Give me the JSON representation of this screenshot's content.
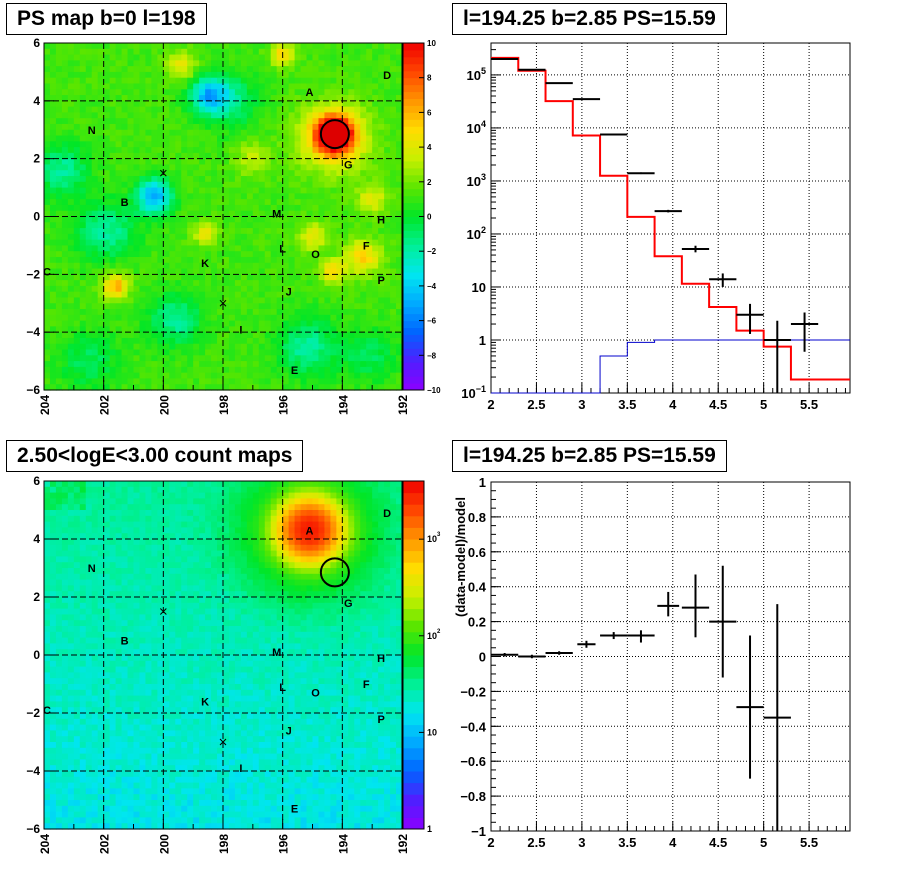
{
  "titles": {
    "ps_map": "PS map b=0 l=198",
    "spectrum": "l=194.25 b=2.85 PS=15.59",
    "count_map": "2.50<logE<3.00 count maps",
    "residual": "l=194.25 b=2.85 PS=15.59"
  },
  "colors": {
    "data": "#000000",
    "model": "#ff0000",
    "ps_component": "#0000cc",
    "grid": "#000000",
    "selected_source_fill": "#dd0000"
  },
  "chart_data": [
    {
      "type": "heatmap",
      "title": "PS map b=0 l=198",
      "x_ticks": [
        "204",
        "202",
        "200",
        "198",
        "196",
        "194",
        "192"
      ],
      "y_ticks": [
        "6",
        "4",
        "2",
        "0",
        "-2",
        "-4",
        "-6"
      ],
      "xlim": [
        204,
        192
      ],
      "ylim": [
        -6,
        6
      ],
      "colorbar": {
        "min": -10,
        "max": 10,
        "ticks": [
          "10",
          "8",
          "6",
          "4",
          "2",
          "0",
          "−2",
          "−4",
          "−6",
          "−8",
          "−10"
        ]
      },
      "grid": true,
      "sources": [
        {
          "label": "A",
          "l": 195.1,
          "b": 4.3
        },
        {
          "label": "B",
          "l": 201.3,
          "b": 0.5
        },
        {
          "label": "C",
          "l": 203.9,
          "b": -1.9
        },
        {
          "label": "D",
          "l": 192.5,
          "b": 4.9
        },
        {
          "label": "E",
          "l": 195.6,
          "b": -5.3
        },
        {
          "label": "F",
          "l": 193.2,
          "b": -1.0
        },
        {
          "label": "G",
          "l": 193.8,
          "b": 1.8
        },
        {
          "label": "H",
          "l": 192.7,
          "b": -0.1
        },
        {
          "label": "I",
          "l": 197.4,
          "b": -3.9
        },
        {
          "label": "J",
          "l": 195.8,
          "b": -2.6
        },
        {
          "label": "K",
          "l": 198.6,
          "b": -1.6
        },
        {
          "label": "L",
          "l": 196.0,
          "b": -1.1
        },
        {
          "label": "M",
          "l": 196.2,
          "b": 0.1
        },
        {
          "label": "N",
          "l": 202.4,
          "b": 3.0
        },
        {
          "label": "O",
          "l": 194.9,
          "b": -1.3
        },
        {
          "label": "P",
          "l": 192.7,
          "b": -2.2
        }
      ],
      "crosses": [
        {
          "l": 200.0,
          "b": 1.5
        },
        {
          "l": 198.0,
          "b": -3.0
        }
      ],
      "selected": {
        "l": 194.25,
        "b": 2.85,
        "ps": 15.59
      },
      "blobs": [
        {
          "l": 194.25,
          "b": 2.85,
          "value": 10,
          "radius": 0.6
        },
        {
          "l": 194.3,
          "b": 2.7,
          "value": 5,
          "radius": 1.1
        },
        {
          "l": 198.5,
          "b": 4.2,
          "value": -5,
          "radius": 0.6
        },
        {
          "l": 200.3,
          "b": 0.7,
          "value": -6,
          "radius": 0.6
        },
        {
          "l": 197.8,
          "b": 4.0,
          "value": -3,
          "radius": 0.9
        },
        {
          "l": 201.6,
          "b": -2.4,
          "value": 5,
          "radius": 0.45
        },
        {
          "l": 193.3,
          "b": -1.4,
          "value": 4,
          "radius": 0.6
        },
        {
          "l": 193.0,
          "b": 0.6,
          "value": 3,
          "radius": 0.5
        },
        {
          "l": 194.3,
          "b": -1.9,
          "value": 4,
          "radius": 0.4
        },
        {
          "l": 198.6,
          "b": -0.6,
          "value": 3,
          "radius": 0.4
        },
        {
          "l": 195.2,
          "b": -4.5,
          "value": -3,
          "radius": 1.0
        },
        {
          "l": 199.6,
          "b": -3.6,
          "value": -3,
          "radius": 0.9
        },
        {
          "l": 195.0,
          "b": -0.7,
          "value": 3,
          "radius": 0.5
        },
        {
          "l": 201.9,
          "b": -0.5,
          "value": -3,
          "radius": 1.0
        },
        {
          "l": 203.4,
          "b": 1.6,
          "value": -3,
          "radius": 0.9
        },
        {
          "l": 193.1,
          "b": -4.8,
          "value": -2,
          "radius": 0.9
        },
        {
          "l": 199.4,
          "b": 5.2,
          "value": 3,
          "radius": 0.5
        },
        {
          "l": 196.0,
          "b": 5.6,
          "value": 4,
          "radius": 0.4
        },
        {
          "l": 202.5,
          "b": -5.0,
          "value": -2,
          "radius": 1.0
        },
        {
          "l": 197.0,
          "b": 2.0,
          "value": 2,
          "radius": 0.6
        }
      ]
    },
    {
      "type": "line",
      "title": "l=194.25 b=2.85 PS=15.59",
      "xlim": [
        2,
        5.95
      ],
      "ylim": [
        0.1,
        400000
      ],
      "yscale": "log",
      "grid": true,
      "x_ticks": [
        "2",
        "2.5",
        "3",
        "3.5",
        "4",
        "4.5",
        "5",
        "5.5"
      ],
      "y_ticks": [
        "10^-1",
        "1",
        "10",
        "10^2",
        "10^3",
        "10^4",
        "10^5"
      ],
      "series": [
        {
          "style": "points",
          "points": [
            {
              "x": 2.15,
              "y": 200000,
              "xerr": 0.15,
              "ylo": 199000,
              "yhi": 201000
            },
            {
              "x": 2.45,
              "y": 125000,
              "xerr": 0.15,
              "ylo": 124000,
              "yhi": 126000
            },
            {
              "x": 2.75,
              "y": 70000,
              "xerr": 0.15,
              "ylo": 69000,
              "yhi": 71000
            },
            {
              "x": 3.05,
              "y": 35000,
              "xerr": 0.15,
              "ylo": 34500,
              "yhi": 35500
            },
            {
              "x": 3.35,
              "y": 7500,
              "xerr": 0.15,
              "ylo": 7300,
              "yhi": 7700
            },
            {
              "x": 3.65,
              "y": 1400,
              "xerr": 0.15,
              "ylo": 1350,
              "yhi": 1450
            },
            {
              "x": 3.95,
              "y": 270,
              "xerr": 0.15,
              "ylo": 255,
              "yhi": 285
            },
            {
              "x": 4.25,
              "y": 52,
              "xerr": 0.15,
              "ylo": 45,
              "yhi": 60
            },
            {
              "x": 4.55,
              "y": 14,
              "xerr": 0.15,
              "ylo": 10,
              "yhi": 18
            },
            {
              "x": 4.85,
              "y": 3,
              "xerr": 0.15,
              "ylo": 1.3,
              "yhi": 4.8
            },
            {
              "x": 5.15,
              "y": 1,
              "xerr": 0.15,
              "ylo": 0.1,
              "yhi": 2.3
            },
            {
              "x": 5.45,
              "y": 2,
              "xerr": 0.15,
              "ylo": 0.6,
              "yhi": 3.3
            }
          ]
        },
        {
          "style": "step",
          "edges": [
            2,
            2.3,
            2.6,
            2.9,
            3.2,
            3.5,
            3.8,
            4.1,
            4.4,
            4.7,
            5.0,
            5.3,
            5.6,
            5.95
          ],
          "values": [
            210000,
            120000,
            32000,
            7200,
            1250,
            210,
            38,
            11.5,
            4.2,
            1.5,
            0.75,
            0.18,
            0.18
          ]
        },
        {
          "style": "step",
          "edges": [
            2,
            2.3,
            2.6,
            2.9,
            3.2,
            3.5,
            3.8,
            4.1,
            4.4,
            4.7,
            5.0,
            5.3,
            5.6,
            5.95
          ],
          "values": [
            0.1,
            0.1,
            0.1,
            0.1,
            0.5,
            0.9,
            1.0,
            1.0,
            1.0,
            1.0,
            1.0,
            1.0,
            1.0
          ]
        }
      ]
    },
    {
      "type": "heatmap",
      "title": "2.50<logE<3.00 count maps",
      "x_ticks": [
        "204",
        "202",
        "200",
        "198",
        "196",
        "194",
        "192"
      ],
      "y_ticks": [
        "6",
        "4",
        "2",
        "0",
        "-2",
        "-4",
        "-6"
      ],
      "xlim": [
        204,
        192
      ],
      "ylim": [
        -6,
        6
      ],
      "colorbar": {
        "scale": "log",
        "min": 1,
        "max": 4000,
        "ticks": [
          "10^3",
          "10^2",
          "10",
          "1"
        ]
      },
      "grid": true,
      "selected": {
        "l": 194.25,
        "b": 2.85
      },
      "bright_source": {
        "l": 195.1,
        "b": 4.3,
        "peak": 3000
      }
    },
    {
      "type": "scatter",
      "title": "l=194.25 b=2.85 PS=15.59",
      "ylabel": "(data-model)/model",
      "xlim": [
        2,
        5.95
      ],
      "ylim": [
        -1,
        1
      ],
      "grid": true,
      "x_ticks": [
        "2",
        "2.5",
        "3",
        "3.5",
        "4",
        "4.5",
        "5",
        "5.5"
      ],
      "y_ticks": [
        "1",
        "0.8",
        "0.6",
        "0.4",
        "0.2",
        "0",
        "-0.2",
        "-0.4",
        "-0.6",
        "-0.8",
        "-1"
      ],
      "points": [
        {
          "x": 2.15,
          "y": 0.01,
          "xerr": 0.15,
          "ylo": 0.0,
          "yhi": 0.02
        },
        {
          "x": 2.45,
          "y": 0.0,
          "xerr": 0.15,
          "ylo": -0.01,
          "yhi": 0.01
        },
        {
          "x": 2.75,
          "y": 0.02,
          "xerr": 0.15,
          "ylo": 0.01,
          "yhi": 0.03
        },
        {
          "x": 3.05,
          "y": 0.07,
          "xerr": 0.1,
          "ylo": 0.05,
          "yhi": 0.09
        },
        {
          "x": 3.35,
          "y": 0.12,
          "xerr": 0.15,
          "ylo": 0.1,
          "yhi": 0.14
        },
        {
          "x": 3.65,
          "y": 0.12,
          "xerr": 0.15,
          "ylo": 0.08,
          "yhi": 0.15
        },
        {
          "x": 3.95,
          "y": 0.29,
          "xerr": 0.12,
          "ylo": 0.23,
          "yhi": 0.37
        },
        {
          "x": 4.25,
          "y": 0.28,
          "xerr": 0.15,
          "ylo": 0.11,
          "yhi": 0.47
        },
        {
          "x": 4.55,
          "y": 0.2,
          "xerr": 0.15,
          "ylo": -0.12,
          "yhi": 0.52
        },
        {
          "x": 4.85,
          "y": -0.29,
          "xerr": 0.15,
          "ylo": -0.7,
          "yhi": 0.12
        },
        {
          "x": 5.15,
          "y": -0.35,
          "xerr": 0.15,
          "ylo": -1.0,
          "yhi": 0.3
        }
      ]
    }
  ]
}
